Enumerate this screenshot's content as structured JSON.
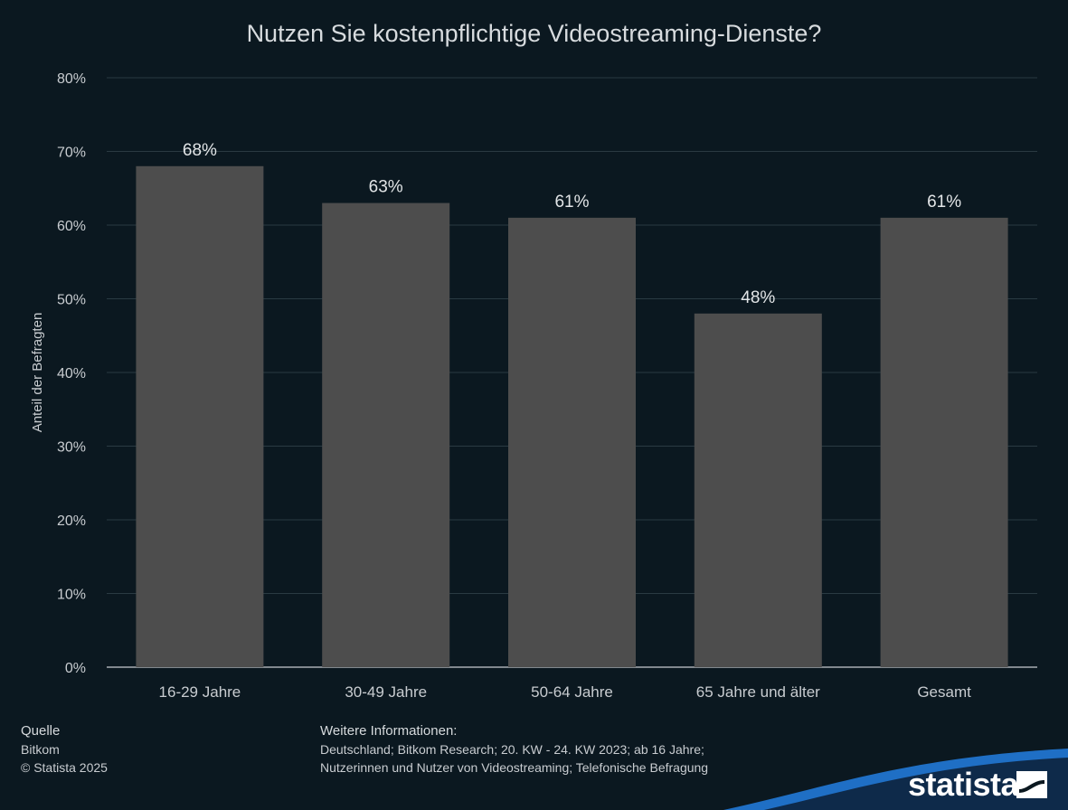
{
  "chart_data": {
    "type": "bar",
    "title": "Nutzen Sie kostenpflichtige Videostreaming-Dienste?",
    "ylabel": "Anteil der Befragten",
    "categories": [
      "16-29 Jahre",
      "30-49 Jahre",
      "50-64 Jahre",
      "65 Jahre und älter",
      "Gesamt"
    ],
    "values": [
      68,
      63,
      61,
      48,
      61
    ],
    "value_labels": [
      "68%",
      "63%",
      "61%",
      "48%",
      "61%"
    ],
    "ylim": [
      0,
      80
    ],
    "yticks": [
      0,
      10,
      20,
      30,
      40,
      50,
      60,
      70,
      80
    ],
    "ytick_labels": [
      "0%",
      "10%",
      "20%",
      "30%",
      "40%",
      "50%",
      "60%",
      "70%",
      "80%"
    ],
    "grid": true,
    "colors": {
      "bar": "#4d4d4d",
      "background": "#0b1820",
      "grid": "#2a3a42"
    }
  },
  "footer": {
    "source_heading": "Quelle",
    "source": "Bitkom",
    "copyright": "© Statista 2025",
    "info_heading": "Weitere Informationen:",
    "info_line1": "Deutschland; Bitkom Research; 20. KW - 24. KW 2023; ab 16 Jahre;",
    "info_line2": "Nutzerinnen und Nutzer von Videostreaming; Telefonische Befragung"
  },
  "brand": {
    "name": "statista",
    "icon": "statista-logo-icon",
    "accent": "#1f6fc5"
  }
}
